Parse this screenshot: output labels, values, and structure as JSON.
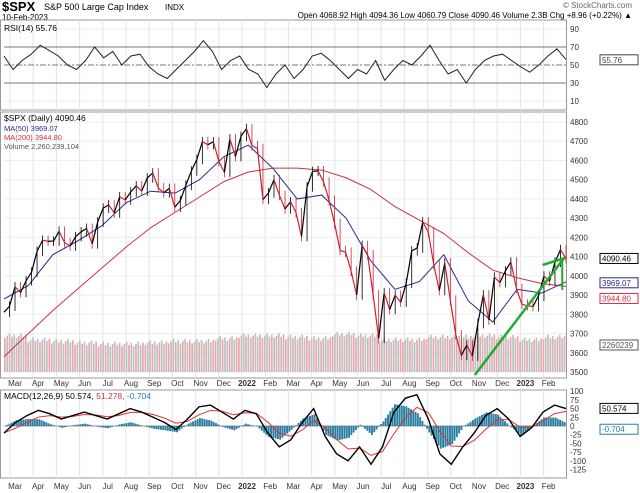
{
  "header": {
    "symbol": "$SPX",
    "name": "S&P 500 Large Cap Index",
    "exchange": "INDX",
    "date": "10-Feb-2023",
    "brand": "© StockCharts.com",
    "quote": "Open 4068.92  High 4094.36  Low 4060.79  Close 4090.46  Volume 2.3B  Chg +8.96 (+0.22%) ▲"
  },
  "colors": {
    "price_up": "#000000",
    "price_down": "#cc2233",
    "ma50": "#2a2a8a",
    "ma200": "#cc3344",
    "trend": "#22aa33",
    "hist": "#2a7fa0",
    "volume_up": "#c0c0c0",
    "volume_down": "#e8a8ae"
  },
  "rsi_legend": "RSI(14) 55.76",
  "rsi_tag": "55.76",
  "price_legend": {
    "main": "$SPX (Daily) 4090.46",
    "ma50": "MA(50) 3969.07",
    "ma200": "MA(200) 3944.80",
    "volume": "Volume 2,260,239,104"
  },
  "tags": {
    "close": "4090.46",
    "ma50": "3969.07",
    "ma200": "3944.80",
    "volume": "2260239",
    "macd": "50.574",
    "hist": "-0.704"
  },
  "macd_legend": {
    "main": "MACD(12,26,9) 50.574,",
    "signal": "51.278,",
    "hist": "-0.704"
  },
  "chart_data": [
    {
      "type": "line",
      "title": "RSI(14) 55.76",
      "ylim": [
        0,
        100
      ],
      "yticks": [
        "90",
        "70",
        "50",
        "30",
        "10"
      ],
      "ytick_values": [
        90,
        70,
        50,
        30,
        10
      ],
      "reference_lines": [
        70,
        50,
        30
      ],
      "values": [
        60,
        45,
        55,
        62,
        72,
        66,
        60,
        50,
        45,
        55,
        70,
        58,
        65,
        50,
        60,
        62,
        48,
        40,
        35,
        45,
        55,
        65,
        77,
        65,
        45,
        55,
        60,
        45,
        40,
        25,
        40,
        50,
        35,
        45,
        60,
        63,
        55,
        45,
        35,
        45,
        40,
        55,
        33,
        45,
        55,
        50,
        60,
        72,
        55,
        40,
        45,
        30,
        45,
        55,
        60,
        62,
        55,
        48,
        42,
        50,
        60,
        68,
        56
      ]
    },
    {
      "type": "line",
      "title": "$SPX (Daily) 4090.46",
      "ylim": [
        3450,
        4850
      ],
      "yticks": [
        "4800",
        "4700",
        "4600",
        "4500",
        "4400",
        "4300",
        "4200",
        "4100",
        "4000",
        "3900",
        "3800",
        "3700",
        "3600",
        "3500"
      ],
      "ytick_values": [
        4800,
        4700,
        4600,
        4500,
        4400,
        4300,
        4200,
        4100,
        4000,
        3900,
        3800,
        3700,
        3600,
        3500
      ],
      "xticks": [
        "Mar",
        "Apr",
        "May",
        "Jun",
        "Jul",
        "Aug",
        "Sep",
        "Oct",
        "Nov",
        "Dec",
        "2022",
        "Feb",
        "Mar",
        "Apr",
        "May",
        "Jun",
        "Jul",
        "Aug",
        "Sep",
        "Oct",
        "Nov",
        "Dec",
        "2023",
        "Feb"
      ],
      "close_weekly": [
        3811,
        3842,
        3943,
        3913,
        3974,
        4019,
        4128,
        4185,
        4180,
        4181,
        4232,
        4173,
        4155,
        4204,
        4229,
        4247,
        4166,
        4280,
        4352,
        4369,
        4327,
        4411,
        4395,
        4436,
        4468,
        4441,
        4509,
        4535,
        4458,
        4432,
        4455,
        4357,
        4391,
        4471,
        4545,
        4605,
        4697,
        4682,
        4697,
        4595,
        4538,
        4712,
        4620,
        4725,
        4766,
        4677,
        4662,
        4397,
        4431,
        4500,
        4418,
        4348,
        4385,
        4329,
        4204,
        4463,
        4543,
        4546,
        4488,
        4393,
        4272,
        4132,
        4123,
        4024,
        3901,
        4158,
        4109,
        3901,
        3675,
        3912,
        3825,
        3899,
        3863,
        3962,
        4130,
        4145,
        4280,
        4228,
        4058,
        3924,
        4067,
        3873,
        3693,
        3586,
        3640,
        3583,
        3752,
        3901,
        3771,
        3993,
        3965,
        4026,
        4072,
        3934,
        3852,
        3845,
        3840,
        3895,
        3999,
        3973,
        4071,
        4136,
        4090
      ],
      "ma50_monthly": [
        3880,
        3950,
        4110,
        4180,
        4260,
        4380,
        4440,
        4430,
        4500,
        4620,
        4680,
        4560,
        4400,
        4420,
        4300,
        4080,
        3930,
        3970,
        4110,
        3870,
        3760,
        3930,
        3910,
        3969
      ],
      "ma200_monthly": [
        3580,
        3700,
        3820,
        3930,
        4040,
        4150,
        4250,
        4330,
        4410,
        4490,
        4540,
        4560,
        4560,
        4550,
        4510,
        4450,
        4360,
        4290,
        4220,
        4120,
        4030,
        3990,
        3960,
        3945
      ],
      "volume_monthly_billions": [
        2.6,
        2.3,
        2.2,
        2.1,
        2.0,
        2.0,
        2.1,
        2.2,
        2.2,
        2.4,
        2.6,
        2.6,
        2.5,
        2.4,
        2.7,
        2.6,
        2.3,
        2.3,
        2.5,
        2.5,
        2.6,
        2.5,
        2.3,
        2.5
      ],
      "trendlines": "green uptrend from Oct 2022 low to Feb 2023"
    },
    {
      "type": "line",
      "title": "MACD(12,26,9) 50.574, 51.278, -0.704",
      "ylim": [
        -135,
        105
      ],
      "yticks": [
        "100",
        "75",
        "50",
        "25",
        "0",
        "-25",
        "-50",
        "-75",
        "-100",
        "-125"
      ],
      "ytick_values": [
        100,
        75,
        50,
        25,
        0,
        -25,
        -50,
        -75,
        -100,
        -125
      ],
      "macd": [
        -20,
        10,
        30,
        45,
        35,
        20,
        30,
        40,
        30,
        20,
        35,
        50,
        40,
        25,
        10,
        -10,
        20,
        55,
        60,
        40,
        20,
        45,
        35,
        -20,
        -60,
        -40,
        10,
        50,
        -30,
        -80,
        -100,
        -60,
        -110,
        -60,
        40,
        80,
        90,
        20,
        -80,
        -110,
        -60,
        -20,
        30,
        50,
        20,
        -30,
        -5,
        40,
        60,
        50
      ],
      "xticks": [
        "Mar",
        "Apr",
        "May",
        "Jun",
        "Jul",
        "Aug",
        "Sep",
        "Oct",
        "Nov",
        "Dec",
        "2022",
        "Feb",
        "Mar",
        "Apr",
        "May",
        "Jun",
        "Jul",
        "Aug",
        "Sep",
        "Oct",
        "Nov",
        "Dec",
        "2023",
        "Feb"
      ]
    }
  ]
}
